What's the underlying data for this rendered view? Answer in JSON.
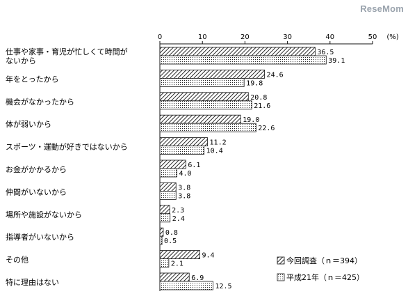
{
  "watermark": "ReseMom",
  "chart_data": {
    "type": "bar",
    "orientation": "horizontal",
    "xlim": [
      0,
      50
    ],
    "x_ticks": [
      "0",
      "10",
      "20",
      "30",
      "40",
      "50"
    ],
    "unit_label": "(%)",
    "grid": false,
    "legend_position": "bottom-right",
    "categories": [
      [
        "仕事や家事・育児が忙しくて時間が",
        "ないから"
      ],
      [
        "年をとったから"
      ],
      [
        "機会がなかったから"
      ],
      [
        "体が弱いから"
      ],
      [
        "スポーツ・運動が好きではないから"
      ],
      [
        "お金がかかるから"
      ],
      [
        "仲間がいないから"
      ],
      [
        "場所や施設がないから"
      ],
      [
        "指導者がいないから"
      ],
      [
        "その他"
      ],
      [
        "特に理由はない"
      ]
    ],
    "series": [
      {
        "name": "今回調査（ｎ＝394）",
        "pattern": "hatch",
        "values": [
          36.5,
          24.6,
          20.8,
          19.0,
          11.2,
          6.1,
          3.8,
          2.3,
          0.8,
          9.4,
          6.9
        ],
        "labels": [
          "36.5",
          "24.6",
          "20.8",
          "19.0",
          "11.2",
          "6.1",
          "3.8",
          "2.3",
          "0.8",
          "9.4",
          "6.9"
        ]
      },
      {
        "name": "平成21年（ｎ＝425）",
        "pattern": "dots",
        "values": [
          39.1,
          19.8,
          21.6,
          22.6,
          10.4,
          4.0,
          3.8,
          2.4,
          0.5,
          2.1,
          12.5
        ],
        "labels": [
          "39.1",
          "19.8",
          "21.6",
          "22.6",
          "10.4",
          "4.0",
          "3.8",
          "2.4",
          "0.5",
          "2.1",
          "12.5"
        ]
      }
    ]
  }
}
